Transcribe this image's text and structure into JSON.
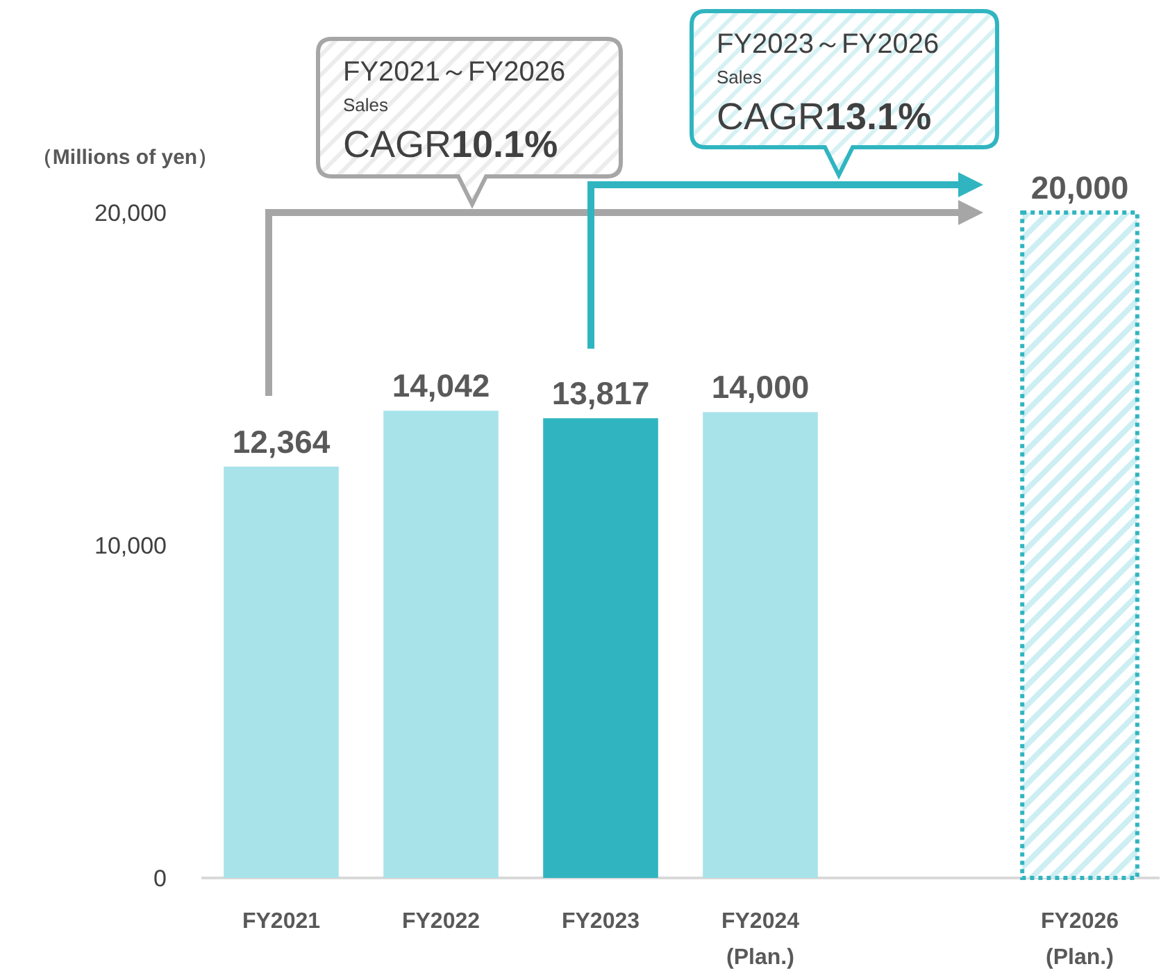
{
  "chart_data": {
    "type": "bar",
    "ylabel": "（Millions of yen）",
    "categories": [
      "FY2021",
      "FY2022",
      "FY2023",
      "FY2024\n(Plan.)",
      null,
      "FY2026\n(Plan.)"
    ],
    "values": [
      12364,
      14042,
      13817,
      14000,
      null,
      20000
    ],
    "colors": [
      "#a8e3ea",
      "#a8e3ea",
      "#30b5c0",
      "#a8e3ea",
      null,
      "#30b5c0"
    ],
    "ylim": [
      0,
      20000
    ],
    "yticks": [
      0,
      {
        "value": 10000,
        "label": "10,000"
      },
      {
        "value": 20000,
        "label": "20,000"
      }
    ],
    "value_labels": [
      "12,364",
      "14,042",
      "13,817",
      "14,000",
      null,
      "20,000"
    ],
    "grid": false,
    "annotations": [
      "FY2021～FY2026\nSales\nCAGR10.1%",
      "FY2023～FY2026\nSales\nCAGR13.1%"
    ]
  }
}
